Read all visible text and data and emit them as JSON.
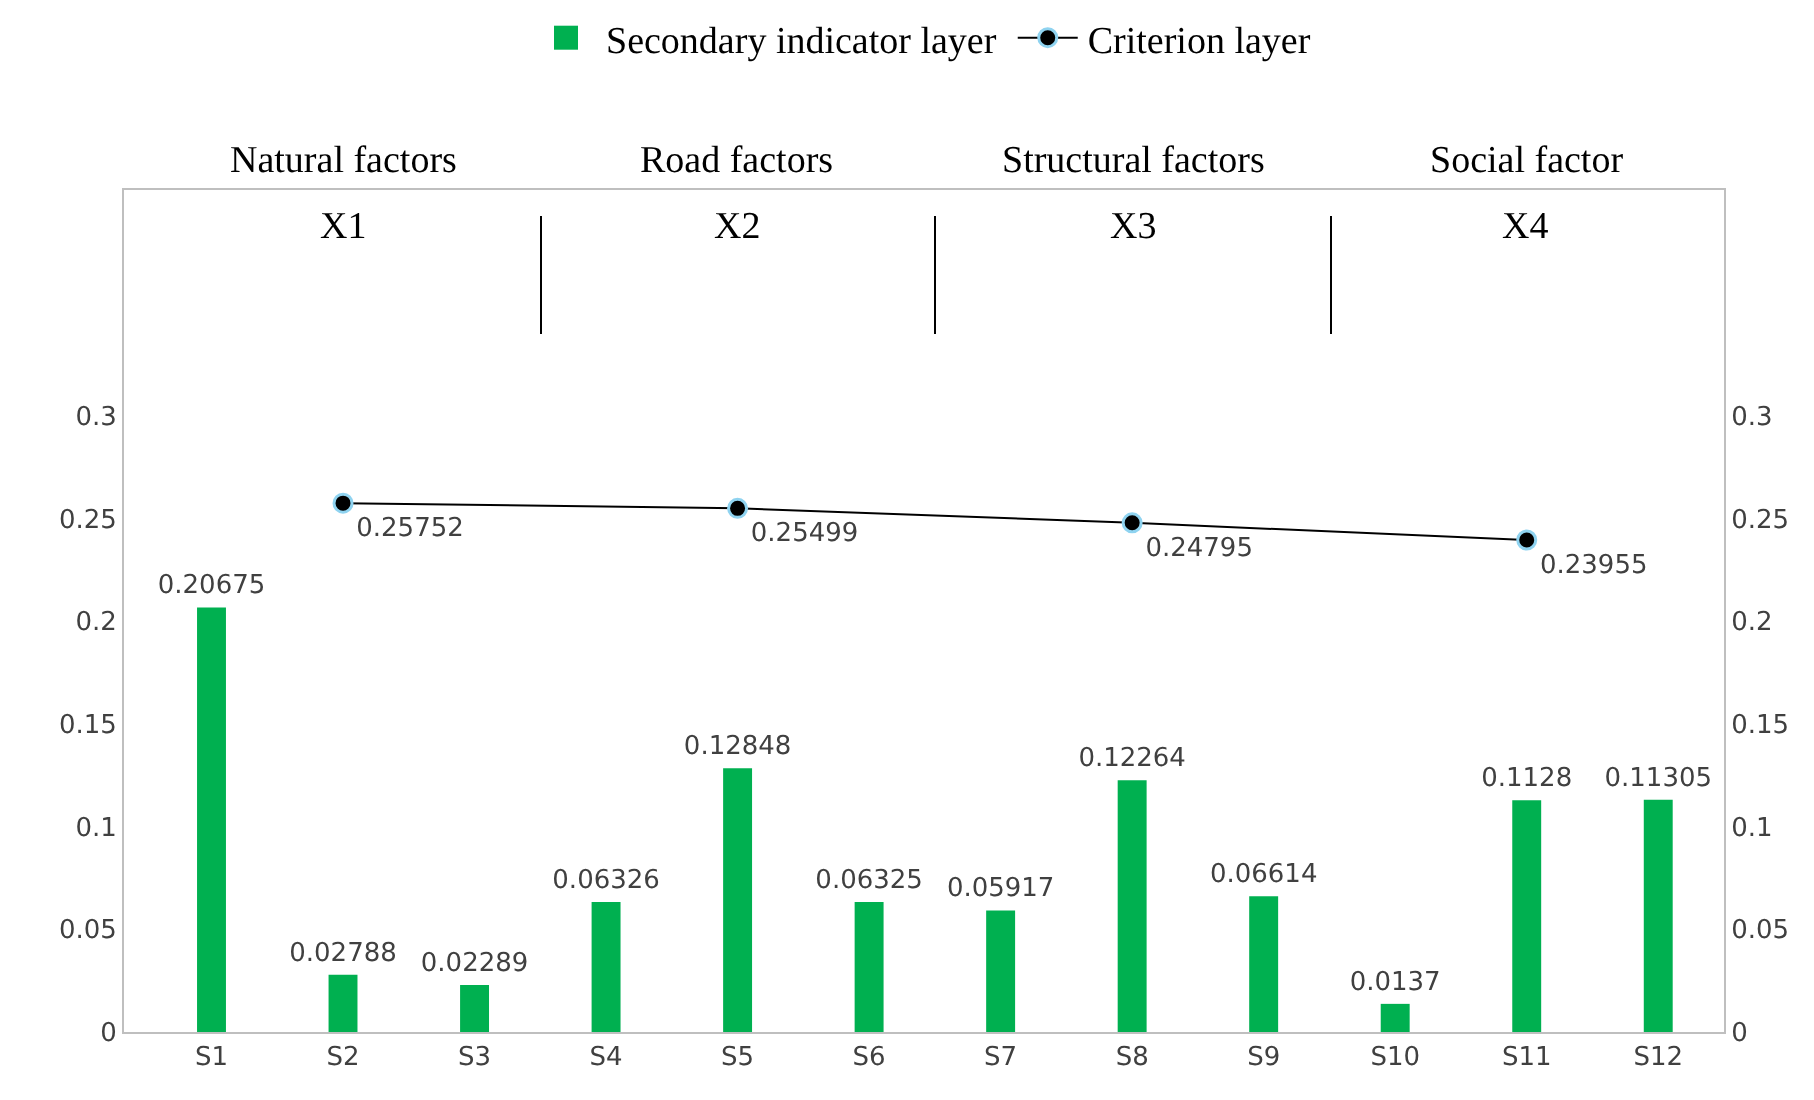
{
  "chart_data": {
    "type": "bar",
    "categories": [
      "S1",
      "S2",
      "S3",
      "S4",
      "S5",
      "S6",
      "S7",
      "S8",
      "S9",
      "S10",
      "S11",
      "S12"
    ],
    "series": [
      {
        "name": "Secondary indicator layer",
        "color": "#00b050",
        "values": [
          0.20675,
          0.02788,
          0.02289,
          0.06326,
          0.12848,
          0.06325,
          0.05917,
          0.12264,
          0.06614,
          0.0137,
          0.1128,
          0.11305
        ]
      },
      {
        "name": "Criterion layer",
        "type": "line",
        "color": "#000000",
        "x": [
          "S2",
          "S5",
          "S8",
          "S11"
        ],
        "values": [
          0.25752,
          0.25499,
          0.24795,
          0.23955
        ]
      }
    ],
    "annotations": [
      "Natural factors",
      "X1",
      "Road factors",
      "X2",
      "Structural factors",
      "X3",
      "Social factor",
      "X4"
    ],
    "ylim": [
      0,
      0.41
    ],
    "yticks": [
      0,
      0.05,
      0.1,
      0.15,
      0.2,
      0.25,
      0.3
    ],
    "y2lim": [
      0,
      0.41
    ],
    "y2ticks": [
      0,
      0.05,
      0.1,
      0.15,
      0.2,
      0.25,
      0.3
    ],
    "data_labels": true,
    "grid": false,
    "legend": "top",
    "marker": "circle",
    "line_style": "solid"
  }
}
